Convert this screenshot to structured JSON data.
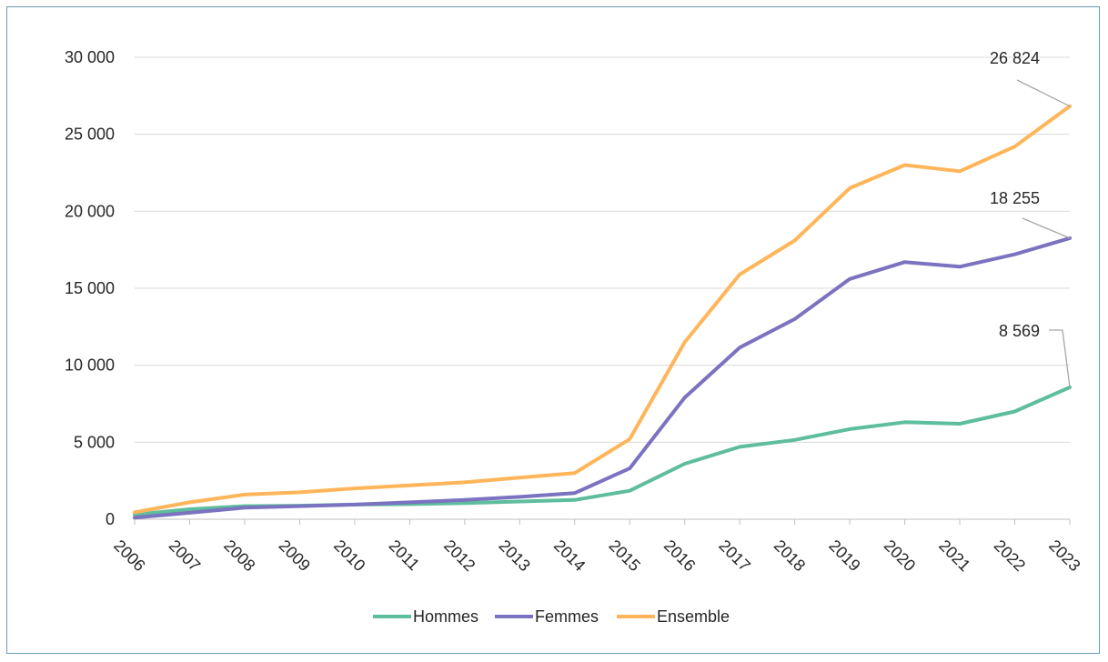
{
  "chart_data": {
    "type": "line",
    "title": "",
    "xlabel": "",
    "ylabel": "",
    "categories": [
      "2006",
      "2007",
      "2008",
      "2009",
      "2010",
      "2011",
      "2012",
      "2013",
      "2014",
      "2015",
      "2016",
      "2017",
      "2018",
      "2019",
      "2020",
      "2021",
      "2022",
      "2023"
    ],
    "ylim": [
      0,
      30000
    ],
    "yticks": [
      0,
      5000,
      10000,
      15000,
      20000,
      25000,
      30000
    ],
    "ytick_labels": [
      "0",
      "5 000",
      "10 000",
      "15 000",
      "20 000",
      "25 000",
      "30 000"
    ],
    "grid": true,
    "legend_position": "bottom",
    "series": [
      {
        "name": "Hommes",
        "color": "#5dbd9c",
        "values": [
          300,
          650,
          850,
          880,
          950,
          980,
          1050,
          1150,
          1250,
          1850,
          3600,
          4700,
          5150,
          5850,
          6300,
          6200,
          7000,
          8569
        ]
      },
      {
        "name": "Femmes",
        "color": "#7b72c0",
        "values": [
          100,
          420,
          750,
          850,
          950,
          1100,
          1250,
          1450,
          1700,
          3300,
          7900,
          11150,
          13000,
          15600,
          16700,
          16400,
          17200,
          18255
        ]
      },
      {
        "name": "Ensemble",
        "color": "#ffb55a",
        "values": [
          450,
          1100,
          1600,
          1750,
          2000,
          2200,
          2400,
          2700,
          3000,
          5200,
          11500,
          15900,
          18100,
          21500,
          23000,
          22600,
          24200,
          26824
        ]
      }
    ],
    "annotations": [
      {
        "series": "Ensemble",
        "x": "2023",
        "label": "26 824"
      },
      {
        "series": "Femmes",
        "x": "2023",
        "label": "18 255"
      },
      {
        "series": "Hommes",
        "x": "2023",
        "label": "8 569"
      }
    ]
  }
}
